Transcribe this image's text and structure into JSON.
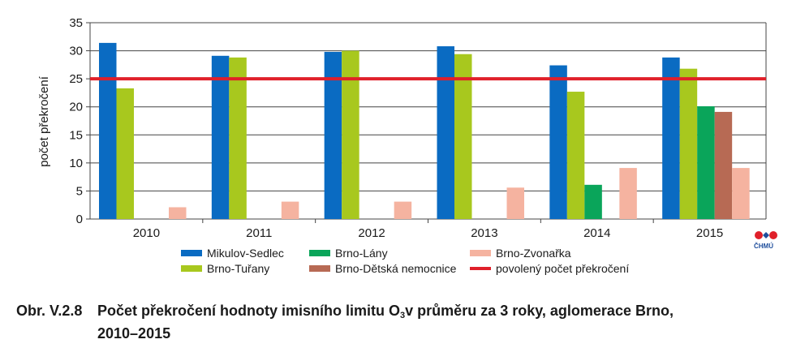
{
  "chart_data": {
    "type": "bar",
    "categories": [
      "2010",
      "2011",
      "2012",
      "2013",
      "2014",
      "2015"
    ],
    "series": [
      {
        "name": "Mikulov-Sedlec",
        "color": "#0a6bc2",
        "values": [
          31.4,
          29.1,
          29.8,
          30.8,
          27.4,
          28.8
        ]
      },
      {
        "name": "Brno-Tuřany",
        "color": "#a8c81e",
        "values": [
          23.3,
          28.8,
          30.0,
          29.4,
          22.7,
          26.8
        ]
      },
      {
        "name": "Brno-Lány",
        "color": "#0aa55a",
        "values": [
          null,
          null,
          null,
          null,
          6.1,
          20.1
        ]
      },
      {
        "name": "Brno-Dětská nemocnice",
        "color": "#b76a54",
        "values": [
          null,
          null,
          null,
          null,
          null,
          19.1
        ]
      },
      {
        "name": "Brno-Zvonařka",
        "color": "#f5b3a0",
        "values": [
          2.1,
          3.1,
          3.1,
          5.6,
          9.1,
          9.1
        ]
      }
    ],
    "limit_line": {
      "name": "povolený počet překročení",
      "value": 25,
      "color": "#e0202a"
    },
    "ylabel": "počet překročení",
    "ylim": [
      0,
      35
    ],
    "yticks": [
      0,
      5,
      10,
      15,
      20,
      25,
      30,
      35
    ],
    "grid": true,
    "legend_placement": "bottom"
  },
  "legend": [
    {
      "label": "Mikulov-Sedlec",
      "color": "#0a6bc2",
      "kind": "bar"
    },
    {
      "label": "Brno-Lány",
      "color": "#0aa55a",
      "kind": "bar"
    },
    {
      "label": "Brno-Zvonařka",
      "color": "#f5b3a0",
      "kind": "bar"
    },
    {
      "label": "Brno-Tuřany",
      "color": "#a8c81e",
      "kind": "bar"
    },
    {
      "label": "Brno-Dětská nemocnice",
      "color": "#b76a54",
      "kind": "bar"
    },
    {
      "label": "povolený počet překročení",
      "color": "#e0202a",
      "kind": "line"
    }
  ],
  "logo": {
    "text": "ČHMÚ",
    "icon": "chmu-logo-icon"
  },
  "caption": {
    "number": "Obr. V.2.8",
    "text_before_sub": "Počet překročení hodnoty imisního limitu O",
    "sub": "3",
    "text_after_sub": "v průměru za 3 roky, aglomerace Brno,",
    "line2": "2010–2015"
  }
}
